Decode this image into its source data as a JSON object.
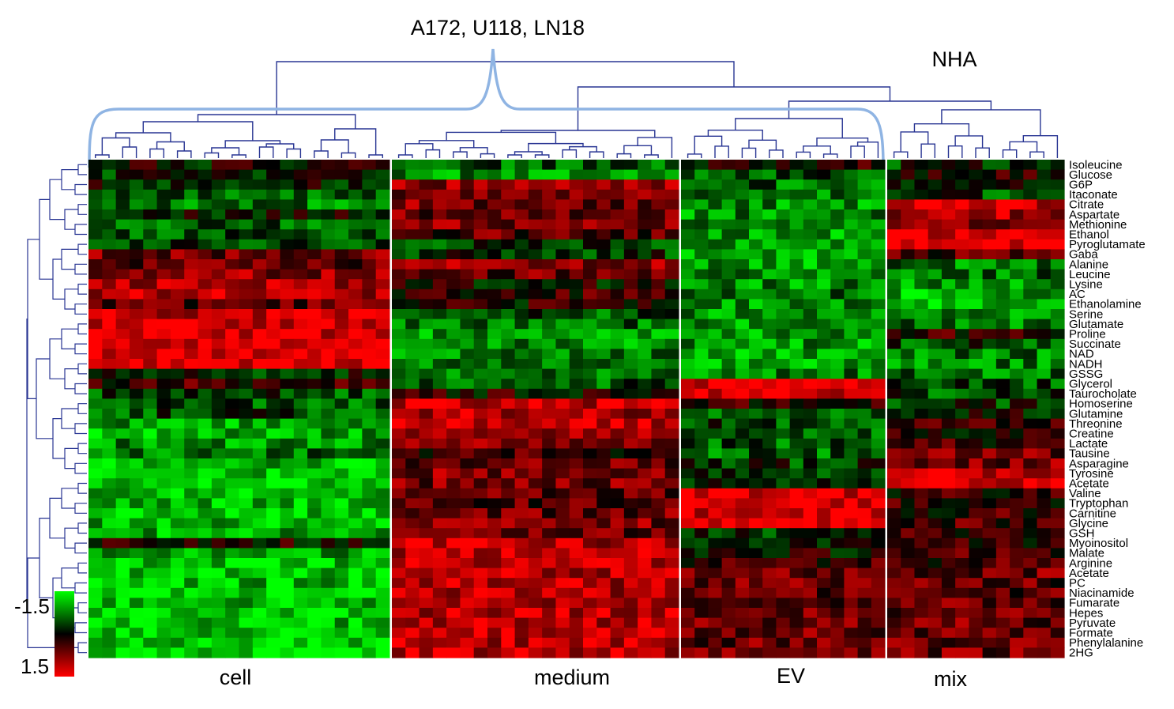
{
  "chart_data": {
    "type": "heatmap",
    "title": "",
    "cell_lines_label": "A172, U118, LN18",
    "control_label": "NHA",
    "colorbar": {
      "min_label": "-1.5",
      "max_label": "1.5",
      "low_color": "#00ff00",
      "mid_color": "#000000",
      "high_color": "#ff0000",
      "range": [
        -1.5,
        1.5
      ]
    },
    "groups": [
      {
        "name": "cell",
        "columns": 22
      },
      {
        "name": "medium",
        "columns": 21
      },
      {
        "name": "EV",
        "columns": 15
      },
      {
        "name": "mix",
        "columns": 13
      }
    ],
    "metabolites": [
      "Isoleucine",
      "Glucose",
      "G6P",
      "Itaconate",
      "Citrate",
      "Aspartate",
      "Methionine",
      "Ethanol",
      "Pyroglutamate",
      "Gaba",
      "Alanine",
      "Leucine",
      "Lysine",
      "AC",
      "Ethanolamine",
      "Serine",
      "Glutamate",
      "Proline",
      "Succinate",
      "NAD",
      "NADH",
      "GSSG",
      "Glycerol",
      "Taurocholate",
      "Homoserine",
      "Glutamine",
      "Threonine",
      "Creatine",
      "Lactate",
      "Tausine",
      "Asparagine",
      "Tyrosine",
      "Acetate",
      "Valine",
      "Tryptophan",
      "Carnitine",
      "Glycine",
      "GSH",
      "Myoinositol",
      "Malate",
      "Arginine",
      "Acetate",
      "PC",
      "Niacinamide",
      "Fumarate",
      "Hepes",
      "Pyruvate",
      "Formate",
      "Phenylalanine",
      "2HG"
    ],
    "row_means": {
      "cell": [
        0.0,
        -0.2,
        -0.1,
        -0.6,
        -0.7,
        0.0,
        -0.5,
        -0.5,
        -0.3,
        0.7,
        0.6,
        0.8,
        1.0,
        1.0,
        0.5,
        1.2,
        1.3,
        1.3,
        1.3,
        1.4,
        1.4,
        -0.2,
        0.3,
        -0.4,
        -0.5,
        -0.4,
        -0.9,
        -1.0,
        -0.8,
        -0.6,
        -1.1,
        -1.2,
        -1.2,
        -1.2,
        -1.1,
        -1.2,
        -1.1,
        -1.0,
        0.1,
        -1.0,
        -1.2,
        -1.2,
        -1.1,
        -1.2,
        -1.1,
        -1.2,
        -1.1,
        -1.2,
        -1.2,
        -1.2
      ],
      "medium": [
        -0.6,
        -0.8,
        0.9,
        0.7,
        0.7,
        0.6,
        0.8,
        0.5,
        -0.3,
        -0.3,
        0.8,
        0.6,
        0.0,
        0.3,
        0.1,
        -0.5,
        -0.6,
        -0.8,
        -0.8,
        -0.7,
        -0.7,
        -0.6,
        -0.5,
        0.1,
        1.1,
        1.0,
        1.2,
        0.9,
        0.8,
        0.3,
        0.6,
        0.8,
        0.7,
        0.6,
        0.5,
        0.6,
        0.7,
        0.6,
        1.0,
        1.1,
        1.1,
        1.1,
        1.1,
        1.1,
        1.1,
        1.1,
        1.1,
        1.1,
        1.1,
        1.1
      ],
      "EV": [
        0.2,
        -0.4,
        -0.6,
        -0.7,
        -0.8,
        -0.8,
        -0.8,
        -0.9,
        -0.8,
        -0.9,
        -0.9,
        -0.8,
        -0.8,
        -0.7,
        -0.8,
        -0.8,
        -0.9,
        -0.9,
        -0.9,
        -0.9,
        -0.9,
        -0.7,
        1.4,
        1.3,
        0.2,
        -0.4,
        -0.4,
        -0.5,
        -0.5,
        -0.6,
        -0.3,
        -0.3,
        -0.2,
        1.3,
        1.4,
        1.3,
        1.3,
        -0.2,
        0.0,
        0.1,
        0.4,
        0.6,
        0.6,
        0.6,
        0.6,
        0.6,
        0.6,
        0.6,
        0.6,
        0.6
      ],
      "mix": [
        -0.3,
        0.2,
        0.0,
        -0.4,
        1.2,
        1.0,
        0.8,
        1.3,
        1.4,
        0.5,
        -0.7,
        -0.6,
        -0.8,
        -1.0,
        -1.1,
        -0.8,
        -0.7,
        0.2,
        -0.4,
        -0.7,
        -0.7,
        -0.7,
        -0.5,
        -0.4,
        -0.3,
        0.0,
        0.2,
        0.2,
        0.3,
        0.6,
        0.7,
        1.2,
        1.3,
        0.2,
        0.3,
        0.3,
        0.4,
        0.3,
        0.2,
        0.4,
        0.4,
        0.6,
        0.5,
        0.5,
        0.6,
        0.6,
        0.6,
        0.6,
        0.6,
        0.6
      ]
    },
    "xlabel": "",
    "ylabel": ""
  }
}
